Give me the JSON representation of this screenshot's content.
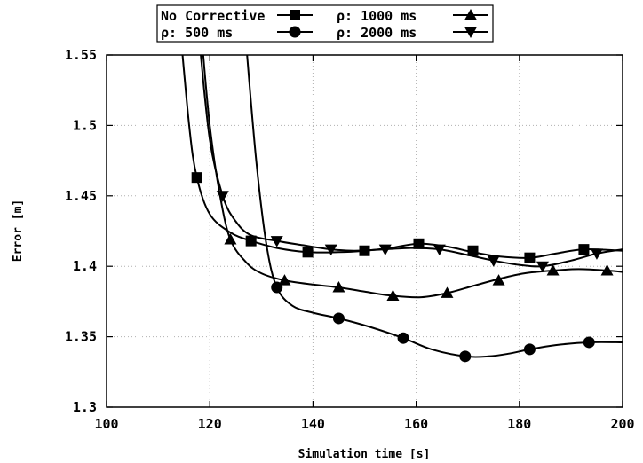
{
  "chart_data": {
    "type": "line",
    "title": "",
    "xlabel": "Simulation time [s]",
    "ylabel": "Error [m]",
    "xlim": [
      100,
      200
    ],
    "ylim": [
      1.3,
      1.55
    ],
    "xticks": [
      "100",
      "120",
      "140",
      "160",
      "180",
      "200"
    ],
    "yticks": [
      "1.3",
      "1.35",
      "1.4",
      "1.45",
      "1.5",
      "1.55"
    ],
    "grid": true,
    "legend_position": "top",
    "series": [
      {
        "name": "No Corrective",
        "marker": "square",
        "x": [
          114,
          116,
          117.5,
          120,
          124,
          128,
          133,
          139,
          145,
          150,
          155,
          160.5,
          166,
          171,
          176,
          182,
          187,
          192.5,
          200
        ],
        "y": [
          1.58,
          1.5,
          1.463,
          1.437,
          1.424,
          1.418,
          1.413,
          1.41,
          1.41,
          1.411,
          1.413,
          1.416,
          1.414,
          1.41,
          1.407,
          1.406,
          1.409,
          1.412,
          1.411
        ],
        "markers_x": [
          117.5,
          128,
          139,
          150,
          160.5,
          171,
          182,
          192.5
        ],
        "markers_y": [
          1.463,
          1.418,
          1.41,
          1.411,
          1.416,
          1.411,
          1.406,
          1.412
        ]
      },
      {
        "name": "ρ: 500 ms",
        "marker": "circle",
        "x": [
          127,
          129,
          131,
          133,
          136,
          140,
          145,
          151,
          157.5,
          163,
          169.5,
          174,
          178,
          182,
          187,
          193.5,
          200
        ],
        "y": [
          1.56,
          1.475,
          1.415,
          1.385,
          1.372,
          1.367,
          1.363,
          1.357,
          1.349,
          1.341,
          1.336,
          1.336,
          1.338,
          1.341,
          1.344,
          1.346,
          1.346
        ],
        "markers_x": [
          133,
          145,
          157.5,
          169.5,
          182,
          193.5
        ],
        "markers_y": [
          1.385,
          1.363,
          1.349,
          1.336,
          1.341,
          1.346
        ]
      },
      {
        "name": "ρ: 1000 ms",
        "marker": "triangle-up",
        "x": [
          118.5,
          120,
          122,
          124,
          127,
          130,
          134.5,
          140,
          145,
          150,
          155.5,
          161,
          166,
          171,
          176,
          181,
          186.5,
          191.5,
          197,
          200
        ],
        "y": [
          1.56,
          1.5,
          1.45,
          1.419,
          1.403,
          1.395,
          1.39,
          1.387,
          1.385,
          1.382,
          1.379,
          1.378,
          1.381,
          1.386,
          1.391,
          1.395,
          1.397,
          1.398,
          1.397,
          1.396
        ],
        "markers_x": [
          124,
          134.5,
          145,
          155.5,
          166,
          176,
          186.5,
          197
        ],
        "markers_y": [
          1.419,
          1.39,
          1.385,
          1.379,
          1.381,
          1.39,
          1.397,
          1.397
        ]
      },
      {
        "name": "ρ: 2000 ms",
        "marker": "triangle-down",
        "x": [
          118,
          120,
          122.5,
          125,
          128,
          133,
          138,
          143.5,
          148,
          154,
          159,
          164.5,
          170,
          175,
          180,
          184.5,
          190,
          195,
          200
        ],
        "y": [
          1.56,
          1.49,
          1.45,
          1.432,
          1.422,
          1.418,
          1.415,
          1.412,
          1.411,
          1.412,
          1.413,
          1.412,
          1.408,
          1.404,
          1.401,
          1.4,
          1.404,
          1.409,
          1.412
        ],
        "markers_x": [
          122.5,
          133,
          143.5,
          154,
          164.5,
          175,
          184.5,
          195
        ],
        "markers_y": [
          1.45,
          1.418,
          1.412,
          1.412,
          1.412,
          1.404,
          1.4,
          1.409
        ]
      }
    ]
  }
}
